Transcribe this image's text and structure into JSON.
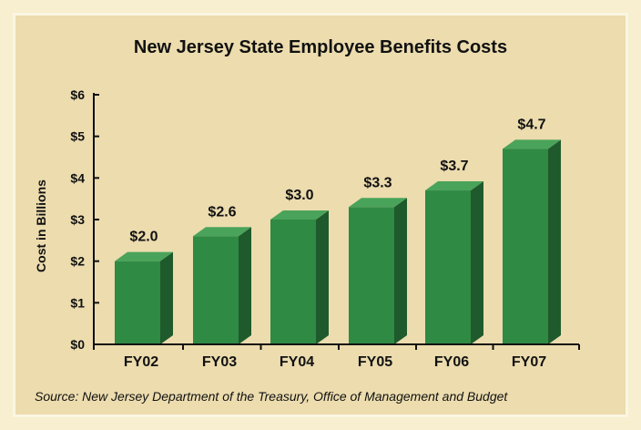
{
  "chart_data": {
    "type": "bar",
    "title": "New Jersey State Employee Benefits Costs",
    "xlabel": "",
    "ylabel": "Cost in Billions",
    "categories": [
      "FY02",
      "FY03",
      "FY04",
      "FY05",
      "FY06",
      "FY07"
    ],
    "values": [
      2.0,
      2.6,
      3.0,
      3.3,
      3.7,
      4.7
    ],
    "data_labels": [
      "$2.0",
      "$2.6",
      "$3.0",
      "$3.3",
      "$3.7",
      "$4.7"
    ],
    "yticks": [
      0,
      1,
      2,
      3,
      4,
      5,
      6
    ],
    "ytick_labels": [
      "$0",
      "$1",
      "$2",
      "$3",
      "$4",
      "$5",
      "$6"
    ],
    "ylim": [
      0,
      6
    ],
    "grid": false,
    "source": "Source:  New Jersey Department of the Treasury, Office of Management and Budget",
    "colors": {
      "bar_front": "#2f8a44",
      "bar_side": "#1f5a2c",
      "bar_top": "#4aa35a",
      "background": "#ecdcae",
      "axis": "#111111"
    }
  }
}
